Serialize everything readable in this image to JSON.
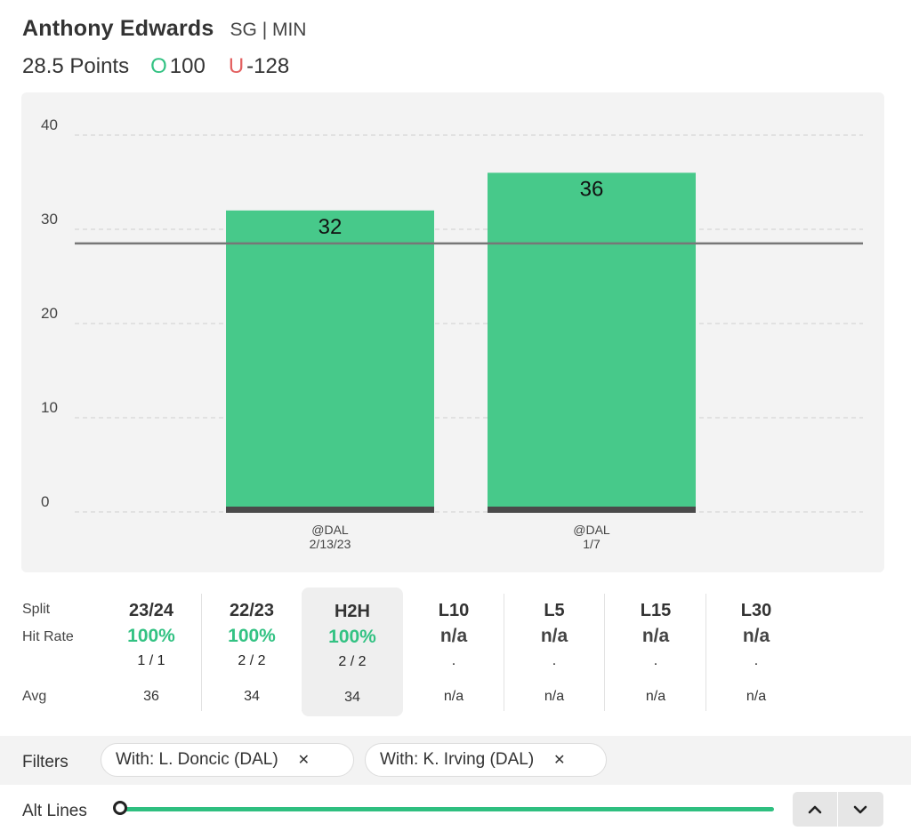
{
  "header": {
    "player_name": "Anthony Edwards",
    "position_team": "SG | MIN",
    "line": "28.5 Points",
    "over_letter": "O",
    "over_odds": "100",
    "under_letter": "U",
    "under_odds": "-128"
  },
  "chart_data": {
    "type": "bar",
    "categories": [
      "@DAL\n2/13/23",
      "@DAL\n1/7"
    ],
    "category_lines": [
      [
        "@DAL",
        "2/13/23"
      ],
      [
        "@DAL",
        "1/7"
      ]
    ],
    "values": [
      32,
      36
    ],
    "yticks": [
      0,
      10,
      20,
      30,
      40
    ],
    "ylim": [
      0,
      40
    ],
    "reference_line": 28.5,
    "grid": true,
    "bar_color": "#47c98a",
    "baseline_color": "#4a4a4a",
    "line_color": "#777777"
  },
  "splits": {
    "row_labels": {
      "split": "Split",
      "hit_rate": "Hit Rate",
      "avg": "Avg"
    },
    "columns": [
      {
        "name": "23/24",
        "rate": "100%",
        "fraction": "1 / 1",
        "avg": "36",
        "color": "green"
      },
      {
        "name": "22/23",
        "rate": "100%",
        "fraction": "2 / 2",
        "avg": "34",
        "color": "green"
      },
      {
        "name": "H2H",
        "rate": "100%",
        "fraction": "2 / 2",
        "avg": "34",
        "color": "green",
        "selected": true
      },
      {
        "name": "L10",
        "rate": "n/a",
        "fraction": ".",
        "avg": "n/a",
        "color": "gray"
      },
      {
        "name": "L5",
        "rate": "n/a",
        "fraction": ".",
        "avg": "n/a",
        "color": "gray"
      },
      {
        "name": "L15",
        "rate": "n/a",
        "fraction": ".",
        "avg": "n/a",
        "color": "gray"
      },
      {
        "name": "L30",
        "rate": "n/a",
        "fraction": ".",
        "avg": "n/a",
        "color": "gray"
      }
    ]
  },
  "filters": {
    "label": "Filters",
    "chips": [
      {
        "label": "With: L. Doncic (DAL)",
        "remove_icon": "close-icon",
        "remove_glyph": "✕"
      },
      {
        "label": "With: K. Irving (DAL)",
        "remove_icon": "close-icon",
        "remove_glyph": "✕"
      }
    ]
  },
  "alt_lines": {
    "label": "Alt Lines",
    "slider_value": 0,
    "up_icon": "chevron-up-icon",
    "down_icon": "chevron-down-icon"
  },
  "colors": {
    "accent_green": "#33c283",
    "under_red": "#e36060",
    "panel_bg": "#f3f3f3"
  }
}
